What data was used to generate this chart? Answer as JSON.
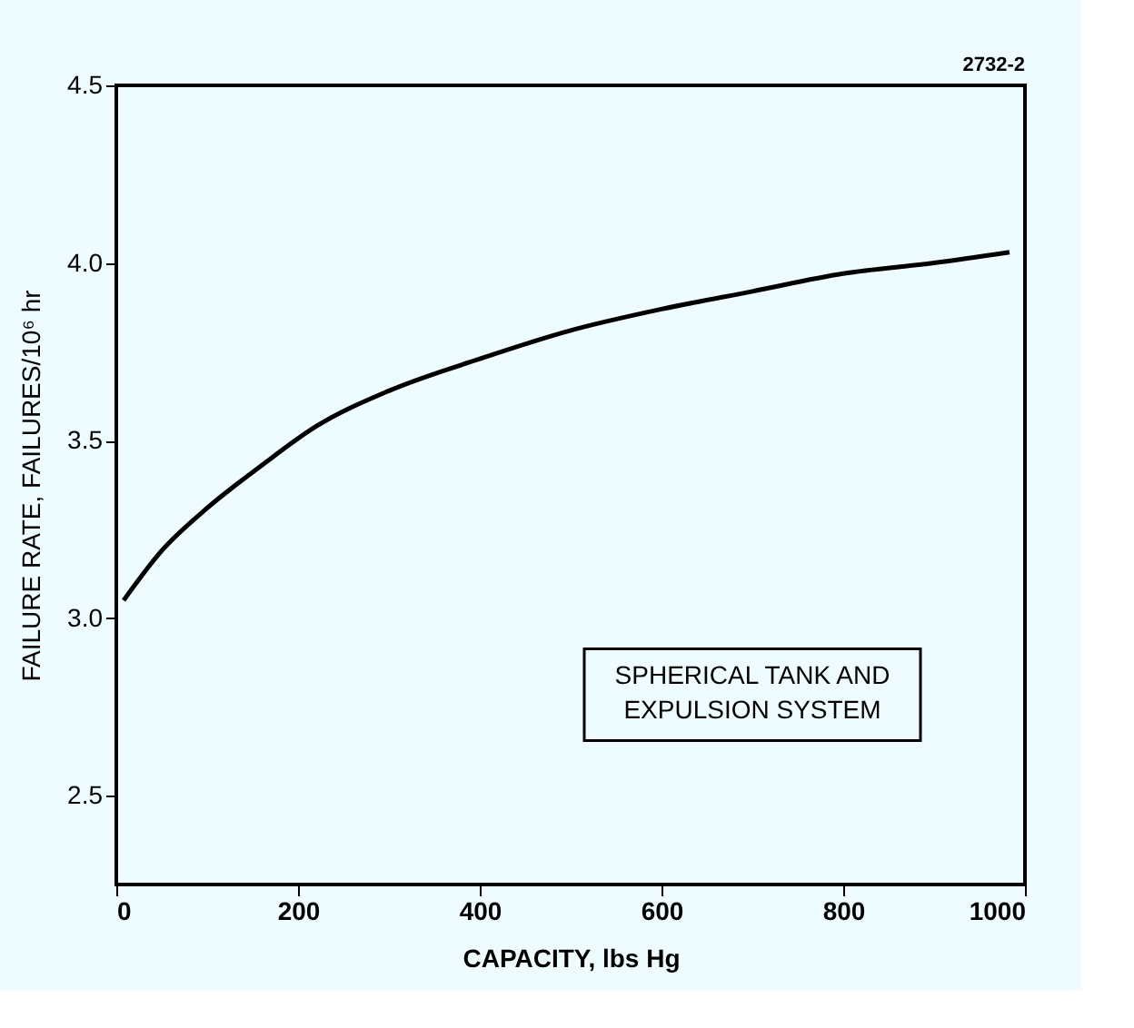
{
  "chart_data": {
    "type": "line",
    "xlabel": "CAPACITY, lbs Hg",
    "ylabel": "FAILURE RATE, FAILURES/10⁶ hr",
    "x": [
      8,
      50,
      100,
      160,
      220,
      300,
      400,
      500,
      600,
      700,
      800,
      900,
      983
    ],
    "series": [
      {
        "color": "#000000",
        "values": [
          3.05,
          3.19,
          3.31,
          3.43,
          3.54,
          3.64,
          3.73,
          3.81,
          3.87,
          3.92,
          3.97,
          4.0,
          4.03
        ]
      }
    ],
    "xlim": [
      0,
      1000
    ],
    "xticks": [
      0,
      200,
      400,
      600,
      800,
      1000
    ],
    "ylim": [
      2.25,
      4.5
    ],
    "yticks": [
      2.5,
      {
        "value": 3,
        "label": "3.0"
      },
      3.5,
      {
        "value": 4,
        "label": "4.0"
      },
      4.5
    ],
    "grid": false,
    "marker": "none",
    "line_style": "solid",
    "annotations": [
      "SPHERICAL TANK AND\nEXPULSION SYSTEM",
      "2732-2"
    ]
  }
}
